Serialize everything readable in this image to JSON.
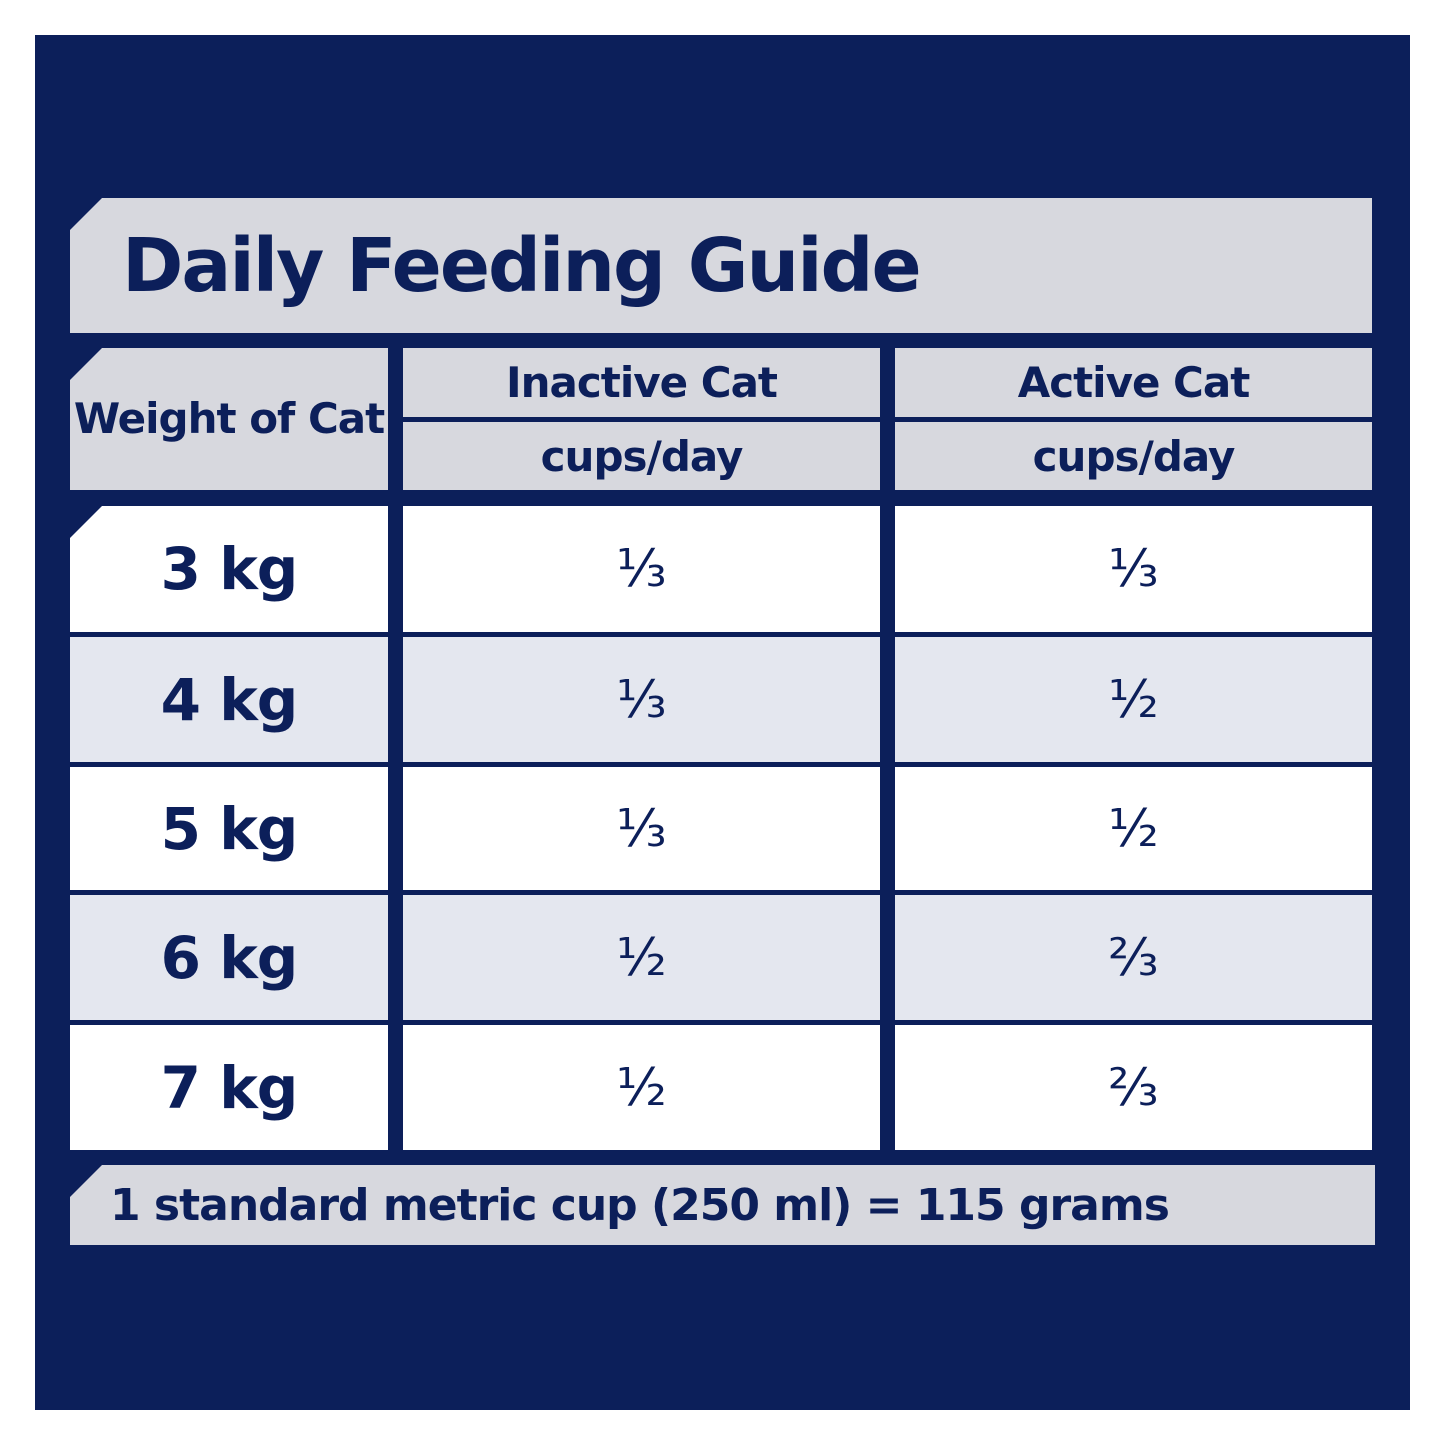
{
  "title": "Daily Feeding Guide",
  "headers": {
    "weight": "Weight of Cat",
    "inactive": "Inactive Cat",
    "inactive_unit": "cups/day",
    "active": "Active Cat",
    "active_unit": "cups/day"
  },
  "rows": [
    {
      "weight": "3 kg",
      "inactive": "⅓",
      "active": "⅓"
    },
    {
      "weight": "4 kg",
      "inactive": "⅓",
      "active": "½"
    },
    {
      "weight": "5 kg",
      "inactive": "⅓",
      "active": "½"
    },
    {
      "weight": "6 kg",
      "inactive": "½",
      "active": "⅔"
    },
    {
      "weight": "7 kg",
      "inactive": "½",
      "active": "⅔"
    }
  ],
  "footer": "1 standard metric cup (250 ml) =  115 grams",
  "colors": {
    "navy": "#0c1f5a",
    "gray": "#d7d8de",
    "light_row": "#e4e7ef",
    "white": "#ffffff"
  }
}
